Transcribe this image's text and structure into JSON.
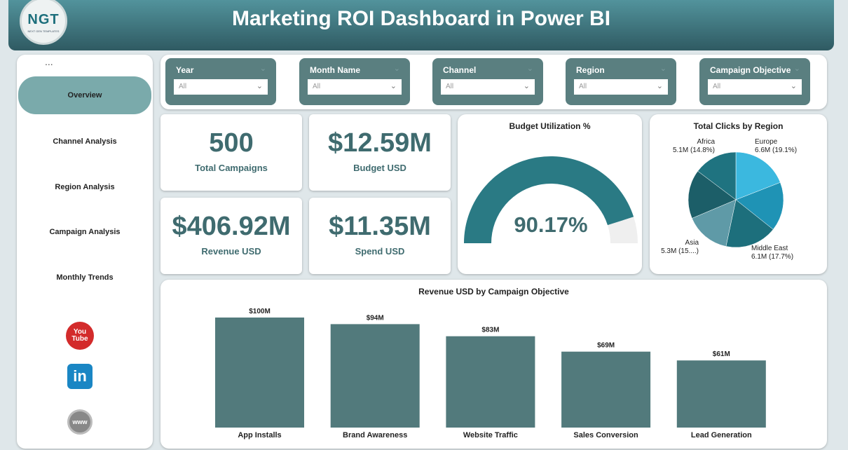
{
  "header": {
    "title": "Marketing ROI Dashboard in Power BI",
    "logo_text": "NGT",
    "logo_sub": "NEXT GEN TEMPLATES"
  },
  "sidebar": {
    "more": "...",
    "items": [
      {
        "label": "Overview",
        "active": true
      },
      {
        "label": "Channel Analysis"
      },
      {
        "label": "Region Analysis"
      },
      {
        "label": "Campaign Analysis"
      },
      {
        "label": "Monthly Trends"
      }
    ],
    "social": [
      {
        "name": "youtube",
        "label": "You Tube"
      },
      {
        "name": "linkedin",
        "label": "in"
      },
      {
        "name": "website",
        "label": "www"
      }
    ]
  },
  "slicers": [
    {
      "label": "Year",
      "value": "All"
    },
    {
      "label": "Month Name",
      "value": "All"
    },
    {
      "label": "Channel",
      "value": "All"
    },
    {
      "label": "Region",
      "value": "All"
    },
    {
      "label": "Campaign Objective",
      "value": "All"
    }
  ],
  "kpis": [
    {
      "value": "500",
      "label": "Total Campaigns"
    },
    {
      "value": "$12.59M",
      "label": "Budget USD"
    },
    {
      "value": "$406.92M",
      "label": "Revenue USD"
    },
    {
      "value": "$11.35M",
      "label": "Spend USD"
    }
  ],
  "chart_data": [
    {
      "type": "gauge",
      "title": "Budget Utilization %",
      "value": 90.17,
      "label": "90.17%",
      "range": [
        0,
        100
      ],
      "colors": {
        "fill": "#2a7a84",
        "rest": "#efefef"
      }
    },
    {
      "type": "pie",
      "title": "Total Clicks by Region",
      "slices": [
        {
          "name": "Europe",
          "value": 6.6,
          "label": "Europe",
          "sub": "6.6M (19.1%)",
          "color": "#3bb8df"
        },
        {
          "name": "",
          "value": 5.75,
          "color": "#1f93b5"
        },
        {
          "name": "Middle East",
          "value": 6.1,
          "label": "Middle East",
          "sub": "6.1M (17.7%)",
          "color": "#1d6f7c"
        },
        {
          "name": "Asia",
          "value": 5.3,
          "label": "Asia",
          "sub": "5.3M (15....)",
          "color": "#5f9aa7"
        },
        {
          "name": "",
          "value": 5.75,
          "color": "#1c5e68"
        },
        {
          "name": "Africa",
          "value": 5.1,
          "label": "Africa",
          "sub": "5.1M (14.8%)",
          "color": "#1f7380"
        }
      ]
    },
    {
      "type": "bar",
      "title": "Revenue USD by Campaign Objective",
      "categories": [
        "App Installs",
        "Brand Awareness",
        "Website Traffic",
        "Sales Conversion",
        "Lead Generation"
      ],
      "values": [
        100,
        94,
        83,
        69,
        61
      ],
      "labels": [
        "$100M",
        "$94M",
        "$83M",
        "$69M",
        "$61M"
      ],
      "ylim": [
        0,
        100
      ],
      "color": "#527a7c"
    }
  ]
}
